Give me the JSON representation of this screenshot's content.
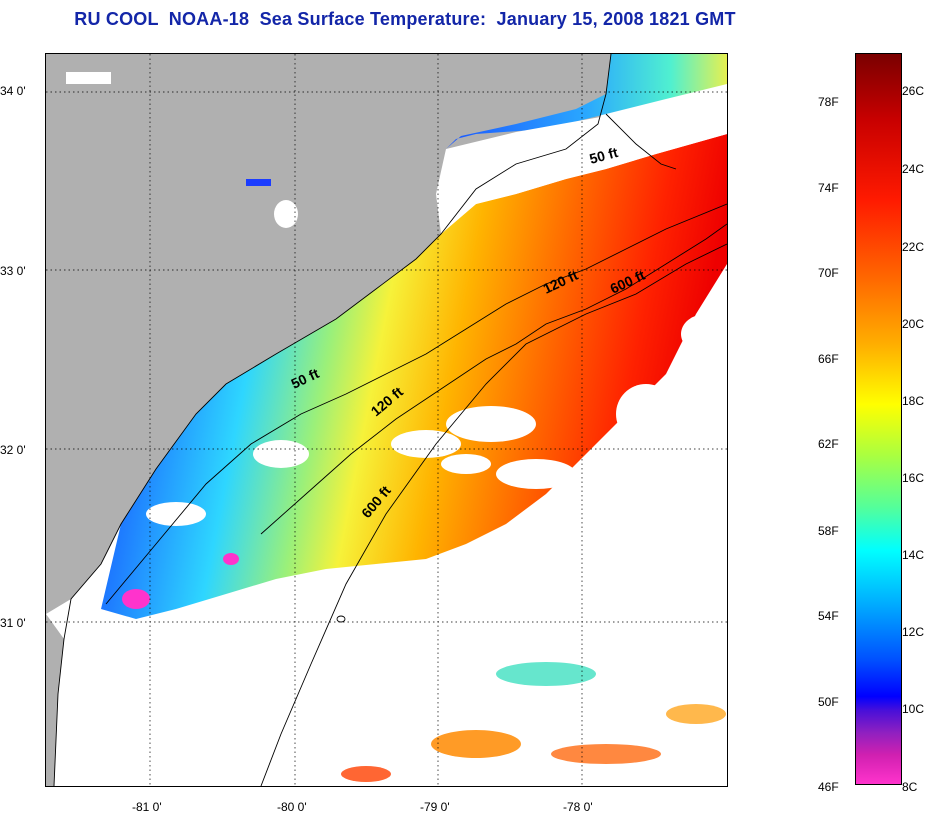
{
  "title": "RU COOL  NOAA-18  Sea Surface Temperature:  January 15, 2008 1821 GMT",
  "latitude_labels": [
    "34 0'",
    "33 0'",
    "32 0'",
    "31 0'"
  ],
  "longitude_labels": [
    "-81 0'",
    "-80 0'",
    "-79 0'",
    "-78 0'"
  ],
  "depth_contours": [
    "50 ft",
    "120 ft",
    "600 ft",
    "50 ft",
    "120 ft",
    "600 ft"
  ],
  "colorbar": {
    "fahrenheit": [
      "78F",
      "74F",
      "70F",
      "66F",
      "62F",
      "58F",
      "54F",
      "50F",
      "46F"
    ],
    "celsius": [
      "26C",
      "24C",
      "22C",
      "20C",
      "18C",
      "16C",
      "14C",
      "12C",
      "10C",
      "8C"
    ]
  },
  "colors": {
    "title": "#1326a8",
    "land": "#b0b0b0",
    "no_data": "#ffffff"
  }
}
